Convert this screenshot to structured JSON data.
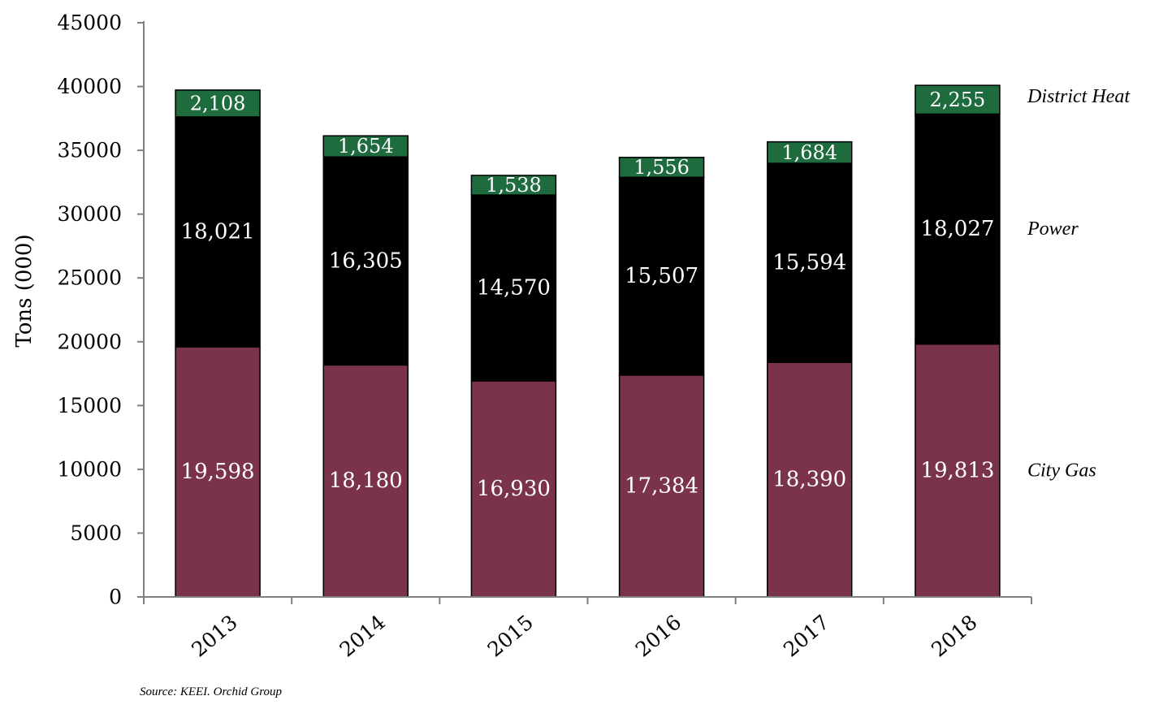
{
  "chart_data": {
    "type": "bar",
    "stacked": true,
    "categories": [
      "2013",
      "2014",
      "2015",
      "2016",
      "2017",
      "2018"
    ],
    "series": [
      {
        "name": "City Gas",
        "color": "#7b334b",
        "values": [
          19598,
          18180,
          16930,
          17384,
          18390,
          19813
        ],
        "labels": [
          "19,598",
          "18,180",
          "16,930",
          "17,384",
          "18,390",
          "19,813"
        ]
      },
      {
        "name": "Power",
        "color": "#000000",
        "values": [
          18021,
          16305,
          14570,
          15507,
          15594,
          18027
        ],
        "labels": [
          "18,021",
          "16,305",
          "14,570",
          "15,507",
          "15,594",
          "18,027"
        ]
      },
      {
        "name": "District Heat",
        "color": "#1e6b3e",
        "values": [
          2108,
          1654,
          1538,
          1556,
          1684,
          2255
        ],
        "labels": [
          "2,108",
          "1,654",
          "1,538",
          "1,556",
          "1,684",
          "2,255"
        ]
      }
    ],
    "ylabel": "Tons (000)",
    "ylim": [
      0,
      45000
    ],
    "yticks": [
      "0",
      "5000",
      "10000",
      "15000",
      "20000",
      "25000",
      "30000",
      "35000",
      "40000",
      "45000"
    ],
    "grid": false,
    "legend": "right, series names aligned with bar segments",
    "source": "Source: KEEI. Orchid Group"
  }
}
